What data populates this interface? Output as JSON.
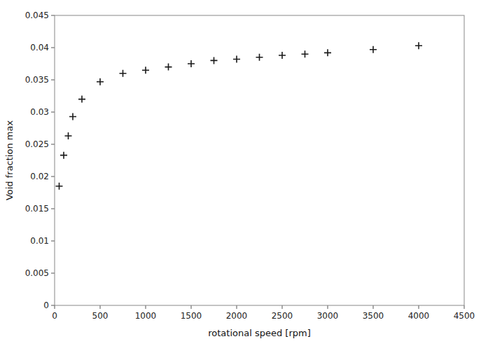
{
  "chart_data": {
    "type": "scatter",
    "x": [
      50,
      100,
      150,
      200,
      300,
      500,
      750,
      1000,
      1250,
      1500,
      1750,
      2000,
      2250,
      2500,
      2750,
      3000,
      3500,
      4000
    ],
    "values": [
      0.0185,
      0.0233,
      0.0263,
      0.0293,
      0.032,
      0.0347,
      0.036,
      0.0365,
      0.037,
      0.0375,
      0.038,
      0.0382,
      0.0385,
      0.0388,
      0.039,
      0.0392,
      0.0397,
      0.0403
    ],
    "xlabel": "rotational speed [rpm]",
    "ylabel": "Void fraction max",
    "xlim": [
      0,
      4500
    ],
    "ylim": [
      0,
      0.045
    ],
    "xticks": [
      0,
      500,
      1000,
      1500,
      2000,
      2500,
      3000,
      3500,
      4000,
      4500
    ],
    "yticks": [
      0,
      0.005,
      0.01,
      0.015,
      0.02,
      0.025,
      0.03,
      0.035,
      0.04,
      0.045
    ],
    "color": "#1a1a1a",
    "marker": "plus",
    "grid": false
  }
}
